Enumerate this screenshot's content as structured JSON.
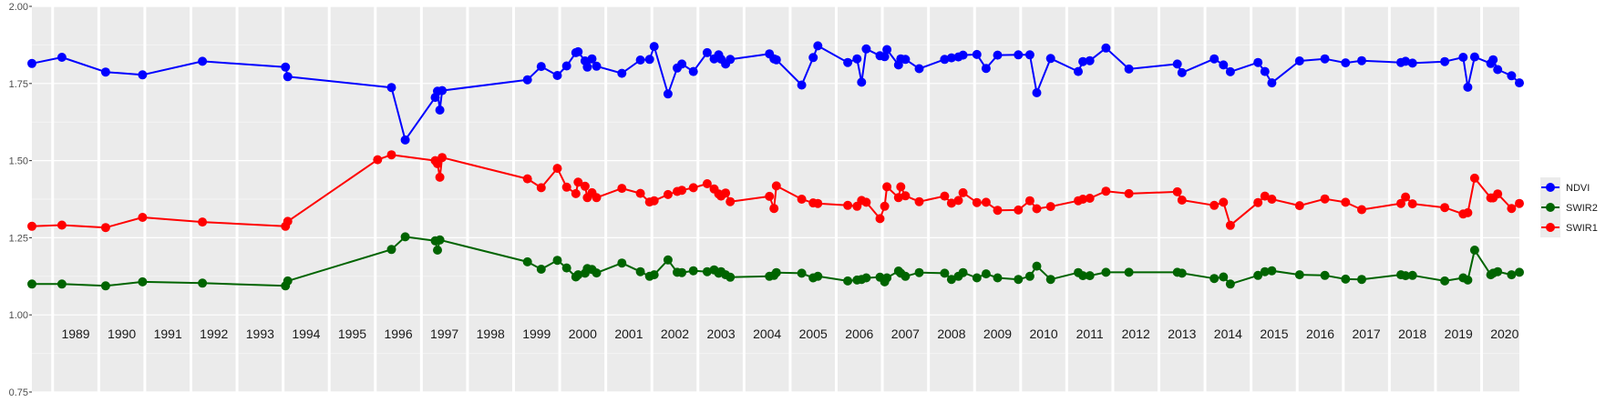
{
  "chart_data": {
    "type": "line",
    "title": "",
    "xlabel": "",
    "ylabel": "",
    "ylim": [
      0.75,
      2.0
    ],
    "y_ticks": [
      "0.75",
      "1.00",
      "1.25",
      "1.50",
      "1.75",
      "2.00"
    ],
    "y_tick_values": [
      0.75,
      1.0,
      1.25,
      1.5,
      1.75,
      2.0
    ],
    "xlim": [
      1988.55,
      2020.82
    ],
    "x_year_labels": [
      "1989",
      "1990",
      "1991",
      "1992",
      "1993",
      "1994",
      "1995",
      "1996",
      "1997",
      "1998",
      "1999",
      "2000",
      "2001",
      "2002",
      "2003",
      "2004",
      "2005",
      "2006",
      "2007",
      "2008",
      "2009",
      "2010",
      "2011",
      "2012",
      "2013",
      "2014",
      "2015",
      "2016",
      "2017",
      "2018",
      "2019",
      "2020"
    ],
    "grid": true,
    "legend_position": "right",
    "series": [
      {
        "name": "NDVI",
        "color": "#0000ff",
        "x": [
          1988.55,
          1989.2,
          1990.15,
          1990.95,
          1992.25,
          1994.05,
          1994.1,
          1996.35,
          1996.65,
          1997.3,
          1997.35,
          1997.4,
          1997.45,
          1999.3,
          1999.6,
          1999.95,
          2000.15,
          2000.35,
          2000.4,
          2000.55,
          2000.6,
          2000.7,
          2000.8,
          2001.35,
          2001.75,
          2001.95,
          2002.05,
          2002.35,
          2002.55,
          2002.65,
          2002.9,
          2003.2,
          2003.35,
          2003.45,
          2003.5,
          2003.6,
          2003.7,
          2004.55,
          2004.65,
          2004.7,
          2005.25,
          2005.5,
          2005.6,
          2006.25,
          2006.45,
          2006.55,
          2006.65,
          2006.95,
          2007.05,
          2007.1,
          2007.35,
          2007.4,
          2007.5,
          2007.8,
          2008.35,
          2008.5,
          2008.65,
          2008.75,
          2009.05,
          2009.25,
          2009.5,
          2009.95,
          2010.2,
          2010.35,
          2010.65,
          2011.25,
          2011.35,
          2011.5,
          2011.85,
          2012.35,
          2013.4,
          2013.5,
          2014.2,
          2014.4,
          2014.55,
          2015.15,
          2015.3,
          2015.45,
          2016.05,
          2016.6,
          2017.05,
          2017.4,
          2018.25,
          2018.35,
          2018.5,
          2019.2,
          2019.6,
          2019.7,
          2019.85,
          2020.2,
          2020.25,
          2020.35,
          2020.65,
          2020.82
        ],
        "values": [
          1.815,
          1.835,
          1.787,
          1.778,
          1.822,
          1.803,
          1.772,
          1.737,
          1.567,
          1.705,
          1.725,
          1.664,
          1.727,
          1.762,
          1.805,
          1.776,
          1.807,
          1.85,
          1.853,
          1.823,
          1.803,
          1.83,
          1.806,
          1.783,
          1.826,
          1.828,
          1.87,
          1.716,
          1.8,
          1.813,
          1.789,
          1.85,
          1.83,
          1.843,
          1.829,
          1.813,
          1.828,
          1.846,
          1.83,
          1.827,
          1.745,
          1.834,
          1.872,
          1.818,
          1.83,
          1.754,
          1.862,
          1.84,
          1.837,
          1.86,
          1.81,
          1.83,
          1.828,
          1.798,
          1.828,
          1.833,
          1.836,
          1.842,
          1.844,
          1.799,
          1.842,
          1.843,
          1.843,
          1.72,
          1.831,
          1.789,
          1.821,
          1.824,
          1.865,
          1.797,
          1.813,
          1.785,
          1.83,
          1.81,
          1.788,
          1.818,
          1.789,
          1.752,
          1.823,
          1.83,
          1.817,
          1.824,
          1.818,
          1.822,
          1.816,
          1.821,
          1.835,
          1.738,
          1.836,
          1.815,
          1.827,
          1.795,
          1.775,
          1.752
        ]
      },
      {
        "name": "SWIR2",
        "color": "#006400",
        "x": [
          1988.55,
          1989.2,
          1990.15,
          1990.95,
          1992.25,
          1994.05,
          1994.1,
          1996.35,
          1996.65,
          1997.3,
          1997.35,
          1997.4,
          1999.3,
          1999.6,
          1999.95,
          2000.15,
          2000.35,
          2000.4,
          2000.55,
          2000.6,
          2000.7,
          2000.8,
          2001.35,
          2001.75,
          2001.95,
          2002.05,
          2002.35,
          2002.55,
          2002.65,
          2002.9,
          2003.2,
          2003.35,
          2003.45,
          2003.5,
          2003.6,
          2003.7,
          2004.55,
          2004.65,
          2004.7,
          2005.25,
          2005.5,
          2005.6,
          2006.25,
          2006.45,
          2006.55,
          2006.65,
          2006.95,
          2007.05,
          2007.1,
          2007.35,
          2007.4,
          2007.5,
          2007.8,
          2008.35,
          2008.5,
          2008.65,
          2008.75,
          2009.05,
          2009.25,
          2009.5,
          2009.95,
          2010.2,
          2010.35,
          2010.65,
          2011.25,
          2011.35,
          2011.5,
          2011.85,
          2012.35,
          2013.4,
          2013.5,
          2014.2,
          2014.4,
          2014.55,
          2015.15,
          2015.3,
          2015.45,
          2016.05,
          2016.6,
          2017.05,
          2017.4,
          2018.25,
          2018.35,
          2018.5,
          2019.2,
          2019.6,
          2019.7,
          2019.85,
          2020.2,
          2020.25,
          2020.35,
          2020.65,
          2020.82
        ],
        "values": [
          1.1,
          1.1,
          1.094,
          1.107,
          1.103,
          1.094,
          1.11,
          1.212,
          1.253,
          1.24,
          1.21,
          1.243,
          1.172,
          1.148,
          1.177,
          1.152,
          1.123,
          1.13,
          1.135,
          1.15,
          1.147,
          1.136,
          1.168,
          1.14,
          1.125,
          1.13,
          1.178,
          1.138,
          1.137,
          1.143,
          1.14,
          1.146,
          1.135,
          1.14,
          1.13,
          1.122,
          1.125,
          1.128,
          1.137,
          1.135,
          1.12,
          1.125,
          1.11,
          1.113,
          1.115,
          1.12,
          1.122,
          1.107,
          1.12,
          1.142,
          1.135,
          1.125,
          1.137,
          1.135,
          1.115,
          1.125,
          1.137,
          1.12,
          1.133,
          1.12,
          1.115,
          1.125,
          1.158,
          1.115,
          1.137,
          1.127,
          1.127,
          1.138,
          1.138,
          1.138,
          1.135,
          1.118,
          1.123,
          1.1,
          1.128,
          1.14,
          1.143,
          1.13,
          1.128,
          1.116,
          1.115,
          1.13,
          1.127,
          1.128,
          1.11,
          1.12,
          1.113,
          1.21,
          1.13,
          1.135,
          1.14,
          1.13,
          1.138
        ]
      },
      {
        "name": "SWIR1",
        "color": "#ff0000",
        "x": [
          1988.55,
          1989.2,
          1990.15,
          1990.95,
          1992.25,
          1994.05,
          1994.1,
          1996.05,
          1996.35,
          1997.3,
          1997.35,
          1997.4,
          1997.45,
          1999.3,
          1999.6,
          1999.95,
          2000.15,
          2000.35,
          2000.4,
          2000.55,
          2000.6,
          2000.7,
          2000.8,
          2001.35,
          2001.75,
          2001.95,
          2002.05,
          2002.35,
          2002.55,
          2002.65,
          2002.9,
          2003.2,
          2003.35,
          2003.45,
          2003.5,
          2003.6,
          2003.7,
          2004.55,
          2004.65,
          2004.7,
          2005.25,
          2005.5,
          2005.6,
          2006.25,
          2006.45,
          2006.55,
          2006.65,
          2006.95,
          2007.05,
          2007.1,
          2007.35,
          2007.4,
          2007.5,
          2007.8,
          2008.35,
          2008.5,
          2008.65,
          2008.75,
          2009.05,
          2009.25,
          2009.5,
          2009.95,
          2010.2,
          2010.35,
          2010.65,
          2011.25,
          2011.35,
          2011.5,
          2011.85,
          2012.35,
          2013.4,
          2013.5,
          2014.2,
          2014.4,
          2014.55,
          2015.15,
          2015.3,
          2015.45,
          2016.05,
          2016.6,
          2017.05,
          2017.4,
          2018.25,
          2018.35,
          2018.5,
          2019.2,
          2019.6,
          2019.7,
          2019.85,
          2020.2,
          2020.25,
          2020.35,
          2020.65,
          2020.82
        ],
        "values": [
          1.287,
          1.291,
          1.283,
          1.316,
          1.301,
          1.287,
          1.303,
          1.503,
          1.519,
          1.5,
          1.49,
          1.446,
          1.51,
          1.441,
          1.412,
          1.475,
          1.414,
          1.393,
          1.43,
          1.417,
          1.38,
          1.396,
          1.38,
          1.41,
          1.394,
          1.366,
          1.37,
          1.39,
          1.4,
          1.404,
          1.412,
          1.425,
          1.408,
          1.392,
          1.385,
          1.395,
          1.367,
          1.384,
          1.345,
          1.418,
          1.375,
          1.363,
          1.361,
          1.355,
          1.352,
          1.371,
          1.365,
          1.312,
          1.352,
          1.415,
          1.38,
          1.415,
          1.386,
          1.367,
          1.385,
          1.362,
          1.371,
          1.396,
          1.364,
          1.365,
          1.339,
          1.34,
          1.37,
          1.344,
          1.351,
          1.37,
          1.375,
          1.378,
          1.401,
          1.393,
          1.399,
          1.372,
          1.355,
          1.365,
          1.29,
          1.364,
          1.385,
          1.375,
          1.354,
          1.376,
          1.365,
          1.341,
          1.361,
          1.382,
          1.36,
          1.348,
          1.327,
          1.331,
          1.443,
          1.379,
          1.379,
          1.392,
          1.345,
          1.361
        ]
      }
    ]
  }
}
